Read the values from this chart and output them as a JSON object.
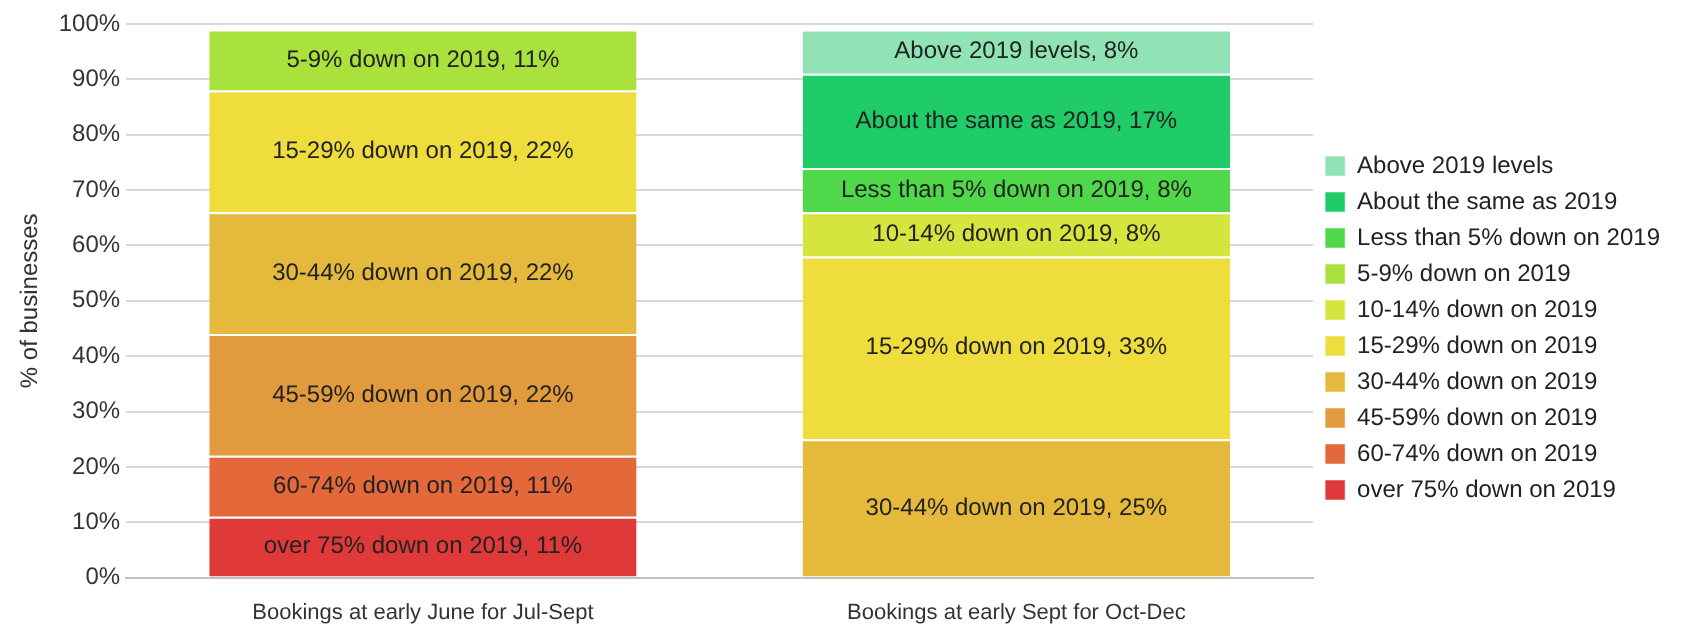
{
  "chart_data": {
    "type": "bar",
    "stacked": true,
    "ylabel": "% of businesses",
    "categories": [
      "Bookings at early June for Jul-Sept",
      "Bookings at early Sept for Oct-Dec"
    ],
    "ylim": [
      0,
      100
    ],
    "yticks": [
      {
        "value": 0,
        "label": "0%"
      },
      {
        "value": 10,
        "label": "10%"
      },
      {
        "value": 20,
        "label": "20%"
      },
      {
        "value": 30,
        "label": "30%"
      },
      {
        "value": 40,
        "label": "40%"
      },
      {
        "value": 50,
        "label": "50%"
      },
      {
        "value": 60,
        "label": "60%"
      },
      {
        "value": 70,
        "label": "70%"
      },
      {
        "value": 80,
        "label": "80%"
      },
      {
        "value": 90,
        "label": "90%"
      },
      {
        "value": 100,
        "label": "100%"
      }
    ],
    "grid": "y",
    "legend": "right",
    "series": [
      {
        "name": "over 75% down on 2019",
        "color": "#e0393a",
        "values": [
          11,
          null
        ],
        "value_labels": [
          "over 75% down on 2019, 11%",
          null
        ]
      },
      {
        "name": "60-74% down on 2019",
        "color": "#e4683a",
        "values": [
          11,
          null
        ],
        "value_labels": [
          "60-74% down on 2019, 11%",
          null
        ]
      },
      {
        "name": "45-59% down on 2019",
        "color": "#e29a3e",
        "values": [
          22,
          null
        ],
        "value_labels": [
          "45-59% down on 2019, 22%",
          null
        ]
      },
      {
        "name": "30-44% down on 2019",
        "color": "#e5b93c",
        "values": [
          22,
          25
        ],
        "value_labels": [
          "30-44% down on 2019, 22%",
          "30-44% down on 2019, 25%"
        ]
      },
      {
        "name": "15-29% down on 2019",
        "color": "#eedd3c",
        "values": [
          22,
          33
        ],
        "value_labels": [
          "15-29% down on 2019, 22%",
          "15-29% down on 2019, 33%"
        ]
      },
      {
        "name": "10-14% down on 2019",
        "color": "#d6e43e",
        "values": [
          null,
          8
        ],
        "value_labels": [
          null,
          "10-14% down on 2019, 8%"
        ]
      },
      {
        "name": "5-9% down on 2019",
        "color": "#a9e23c",
        "values": [
          11,
          null
        ],
        "value_labels": [
          "5-9% down on 2019, 11%",
          null
        ]
      },
      {
        "name": "Less than 5% down on 2019",
        "color": "#4fd84a",
        "values": [
          null,
          8
        ],
        "value_labels": [
          null,
          "Less than 5% down on 2019, 8%"
        ]
      },
      {
        "name": "About the same as 2019",
        "color": "#1fcc68",
        "values": [
          null,
          17
        ],
        "value_labels": [
          null,
          "About the same as 2019, 17%"
        ]
      },
      {
        "name": "Above 2019 levels",
        "color": "#8fe3b4",
        "values": [
          null,
          8
        ],
        "value_labels": [
          null,
          "Above 2019 levels, 8%"
        ]
      }
    ]
  }
}
